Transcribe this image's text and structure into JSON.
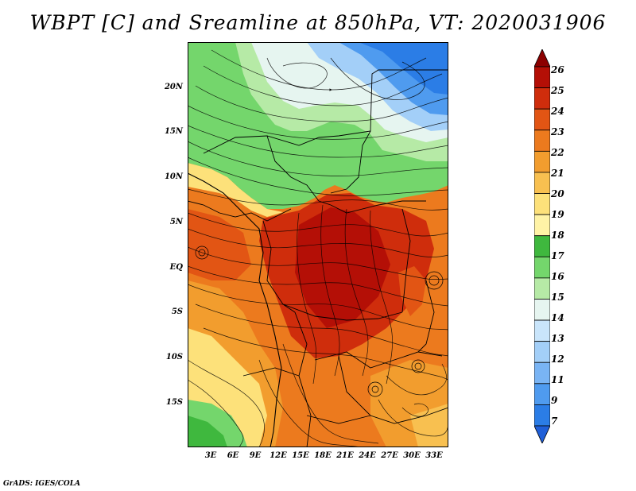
{
  "title": "WBPT [C] and Sreamline at 850hPa, VT: 2020031906",
  "map": {
    "variable": "Wet-bulb potential temperature",
    "units": "C",
    "level": "850hPa",
    "lat_labels": [
      "20N",
      "15N",
      "10N",
      "5N",
      "EQ",
      "5S",
      "10S",
      "15S"
    ],
    "lon_labels": [
      "3E",
      "6E",
      "9E",
      "12E",
      "15E",
      "18E",
      "21E",
      "24E",
      "27E",
      "30E",
      "33E"
    ]
  },
  "colorbar": {
    "labels": [
      "7",
      "9",
      "11",
      "12",
      "13",
      "14",
      "15",
      "16",
      "17",
      "18",
      "19",
      "20",
      "21",
      "22",
      "23",
      "24",
      "25",
      "26"
    ],
    "colors": [
      "#1f5fd8",
      "#2b7de6",
      "#4f9bef",
      "#79b4f4",
      "#a3cff8",
      "#c9e5fb",
      "#e6f5f0",
      "#b6eaa6",
      "#74d66c",
      "#3fb83e",
      "#fff3a6",
      "#fde17a",
      "#f8c050",
      "#f29d2e",
      "#ec7a1e",
      "#e25514",
      "#cf2d0c",
      "#b40f06",
      "#8c0000"
    ]
  },
  "credit": "GrADS: IGES/COLA"
}
